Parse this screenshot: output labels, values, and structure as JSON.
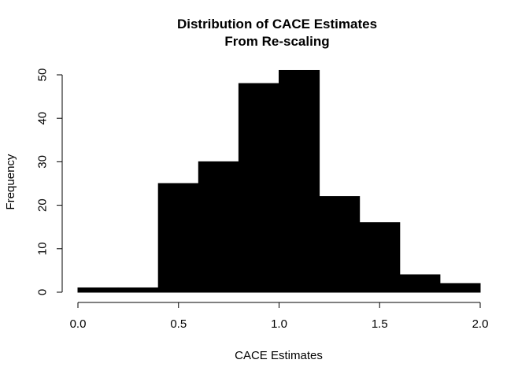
{
  "chart_data": {
    "type": "bar",
    "title": "Distribution of CACE Estimates",
    "subtitle": "From Re-scaling",
    "xlabel": "CACE Estimates",
    "ylabel": "Frequency",
    "xlim": [
      0,
      2
    ],
    "ylim": [
      0,
      50
    ],
    "x_ticks": [
      "0.0",
      "0.5",
      "1.0",
      "1.5",
      "2.0"
    ],
    "y_ticks": [
      "0",
      "10",
      "20",
      "30",
      "40",
      "50"
    ],
    "bin_edges": [
      0.0,
      0.2,
      0.4,
      0.6,
      0.8,
      1.0,
      1.2,
      1.4,
      1.6,
      1.8,
      2.0
    ],
    "values": [
      1,
      1,
      25,
      30,
      48,
      51,
      22,
      16,
      4,
      2
    ],
    "bar_color": "#000000",
    "grid": false
  }
}
